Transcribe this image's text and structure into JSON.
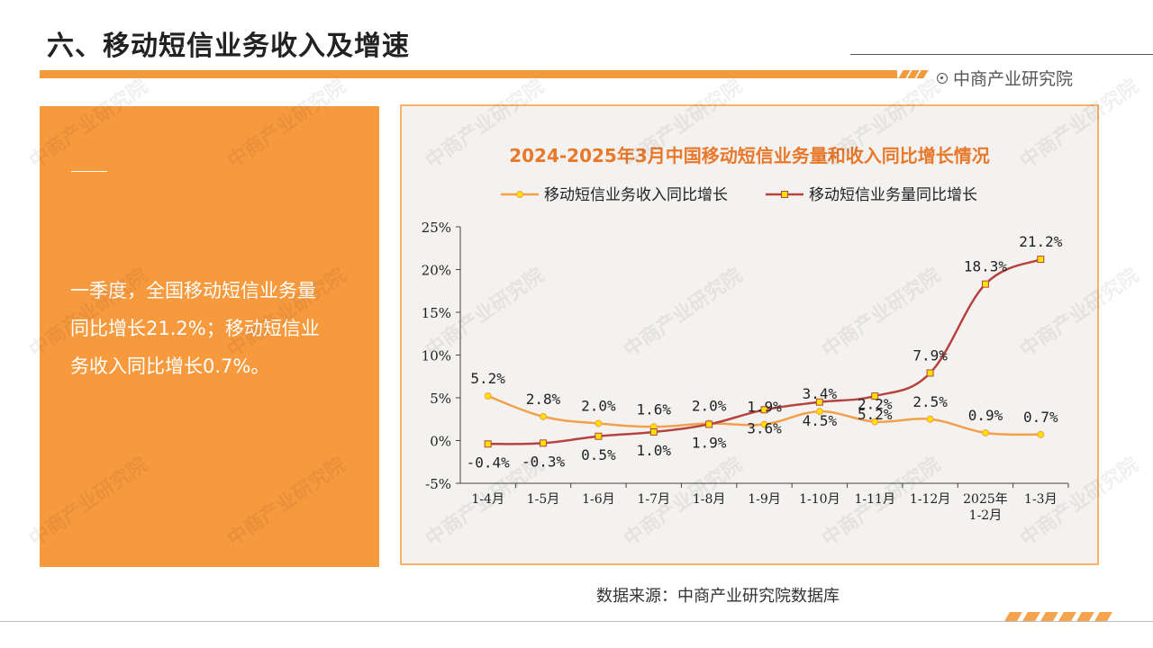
{
  "page": {
    "title": "六、移动短信业务收入及增速",
    "brand": "中商产业研究院",
    "summary_lines": [
      "一季度，全国移动短信业务量",
      "同比增长21.2%；移动短信业",
      "务收入同比增长0.7%。"
    ],
    "source": "数据来源：中商产业研究院数据库",
    "watermark": "中商产业研究院"
  },
  "colors": {
    "accent": "#f39a3c",
    "series_revenue": "#f2a04a",
    "series_volume": "#b5443f",
    "marker_fill": "#ffe000"
  },
  "chart_data": {
    "type": "line",
    "title": "2024-2025年3月中国移动短信业务量和收入同比增长情况",
    "categories": [
      "1-4月",
      "1-5月",
      "1-6月",
      "1-7月",
      "1-8月",
      "1-9月",
      "1-10月",
      "1-11月",
      "1-12月",
      "2025年|1-2月",
      "1-3月"
    ],
    "ylim": [
      -5,
      25
    ],
    "yticks": [
      "-5%",
      "0%",
      "5%",
      "10%",
      "15%",
      "20%",
      "25%"
    ],
    "ytick_values": [
      -5,
      0,
      5,
      10,
      15,
      20,
      25
    ],
    "legend_position": "top",
    "series": [
      {
        "name": "移动短信业务收入同比增长",
        "values": [
          5.2,
          2.8,
          2.0,
          1.6,
          2.0,
          1.9,
          3.4,
          2.2,
          2.5,
          0.9,
          0.7
        ],
        "labels": [
          "5.2%",
          "2.8%",
          "2.0%",
          "1.6%",
          "2.0%",
          "1.9%",
          "3.4%",
          "2.2%",
          "2.5%",
          "0.9%",
          "0.7%"
        ]
      },
      {
        "name": "移动短信业务量同比增长",
        "values": [
          -0.4,
          -0.3,
          0.5,
          1.0,
          1.9,
          3.6,
          4.5,
          5.2,
          7.9,
          18.3,
          21.2
        ],
        "labels": [
          "-0.4%",
          "-0.3%",
          "0.5%",
          "1.0%",
          "1.9%",
          "3.6%",
          "4.5%",
          "5.2%",
          "7.9%",
          "18.3%",
          "21.2%"
        ]
      }
    ]
  }
}
